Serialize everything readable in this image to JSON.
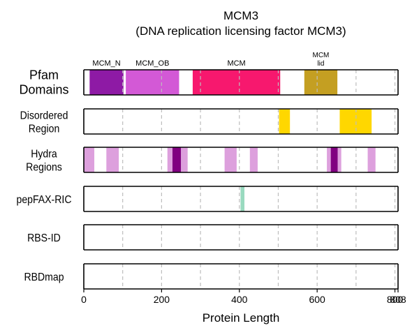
{
  "chart_data": {
    "type": "bar",
    "title": "MCM3",
    "subtitle": "(DNA replication licensing factor MCM3)",
    "xlabel": "Protein Length",
    "protein_length": 808,
    "xlim": [
      0,
      808
    ],
    "x_ticks": [
      0,
      200,
      400,
      600,
      800,
      808
    ],
    "gridlines_at": [
      100,
      200,
      300,
      400,
      500,
      600,
      700,
      800
    ],
    "grid": "dashed vertical",
    "tracks": [
      {
        "name": "Pfam\nDomains",
        "segments": [
          {
            "start": 15,
            "end": 102,
            "color": "#8e1aa5",
            "label": "MCM_N"
          },
          {
            "start": 108,
            "end": 245,
            "color": "#d359d6",
            "label": "MCM_OB"
          },
          {
            "start": 280,
            "end": 505,
            "color": "#f7186e",
            "label": "MCM"
          },
          {
            "start": 567,
            "end": 652,
            "color": "#c49f22",
            "label": "MCM\nlid"
          }
        ]
      },
      {
        "name": "Disordered\nRegion",
        "segments": [
          {
            "start": 502,
            "end": 530,
            "color": "#ffd700"
          },
          {
            "start": 658,
            "end": 740,
            "color": "#ffd700"
          }
        ]
      },
      {
        "name": "Hydra\nRegions",
        "segments": [
          {
            "start": 0,
            "end": 27,
            "color": "#dda0dd"
          },
          {
            "start": 58,
            "end": 90,
            "color": "#dda0dd"
          },
          {
            "start": 215,
            "end": 228,
            "color": "#dda0dd"
          },
          {
            "start": 228,
            "end": 250,
            "color": "#800080"
          },
          {
            "start": 250,
            "end": 267,
            "color": "#dda0dd"
          },
          {
            "start": 362,
            "end": 393,
            "color": "#dda0dd"
          },
          {
            "start": 427,
            "end": 447,
            "color": "#dda0dd"
          },
          {
            "start": 625,
            "end": 635,
            "color": "#dda0dd"
          },
          {
            "start": 635,
            "end": 653,
            "color": "#800080"
          },
          {
            "start": 653,
            "end": 662,
            "color": "#dda0dd"
          },
          {
            "start": 730,
            "end": 750,
            "color": "#dda0dd"
          }
        ]
      },
      {
        "name": "pepFAX-RIC",
        "segments": [
          {
            "start": 403,
            "end": 413,
            "color": "#99dabf"
          }
        ]
      },
      {
        "name": "RBS-ID",
        "segments": []
      },
      {
        "name": "RBDmap",
        "segments": []
      }
    ]
  }
}
